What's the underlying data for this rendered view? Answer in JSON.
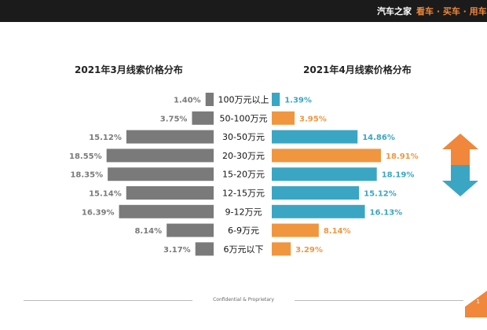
{
  "header": {
    "brand": "汽车之家",
    "slogan": "看车 · 买车 · 用车"
  },
  "footer": {
    "text": "Confidential & Proprietary",
    "page": "1"
  },
  "colors": {
    "gray": "#7a7a7a",
    "blue": "#3aa6c4",
    "orange": "#f0963f",
    "arrow_up": "#f0873a",
    "arrow_down": "#3aa6c4"
  },
  "chart_data": {
    "type": "bar",
    "layout": "butterfly",
    "categories": [
      "100万元以上",
      "50-100万元",
      "30-50万元",
      "20-30万元",
      "15-20万元",
      "12-15万元",
      "9-12万元",
      "6-9万元",
      "6万元以下"
    ],
    "series": [
      {
        "name": "2021年3月线索价格分布",
        "values": [
          1.4,
          3.75,
          15.12,
          18.55,
          18.35,
          15.14,
          16.39,
          8.14,
          3.17
        ],
        "labels": [
          "1.40%",
          "3.75%",
          "15.12%",
          "18.55%",
          "18.35%",
          "15.14%",
          "16.39%",
          "8.14%",
          "3.17%"
        ]
      },
      {
        "name": "2021年4月线索价格分布",
        "values": [
          1.39,
          3.95,
          14.86,
          18.91,
          18.19,
          15.12,
          16.13,
          8.14,
          3.29
        ],
        "labels": [
          "1.39%",
          "3.95%",
          "14.86%",
          "18.91%",
          "18.19%",
          "15.12%",
          "16.13%",
          "8.14%",
          "3.29%"
        ],
        "colors": [
          "#3aa6c4",
          "#f0963f",
          "#3aa6c4",
          "#f0963f",
          "#3aa6c4",
          "#3aa6c4",
          "#3aa6c4",
          "#f0963f",
          "#f0963f"
        ]
      }
    ]
  }
}
